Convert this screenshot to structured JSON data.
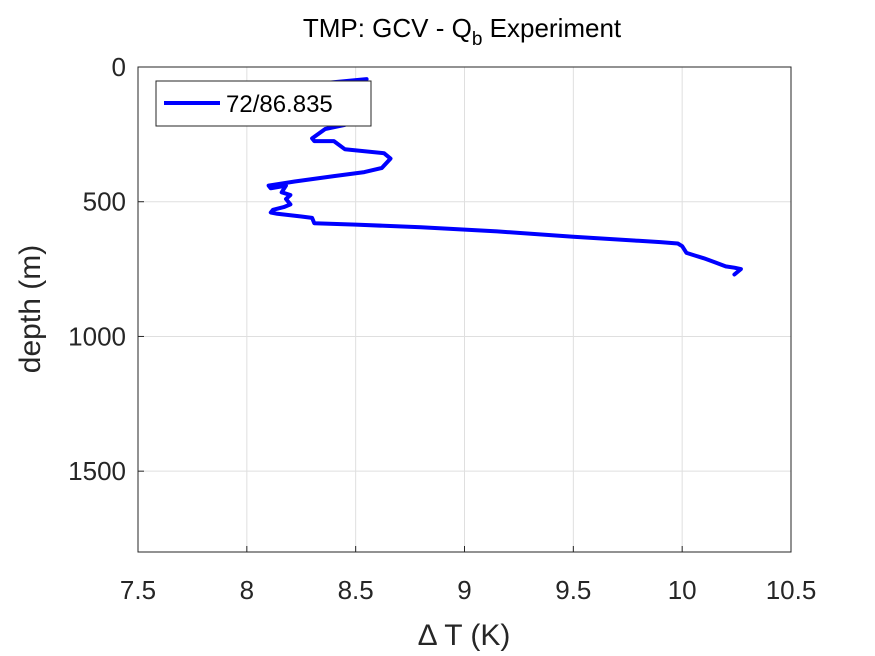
{
  "chart_data": {
    "type": "line",
    "title": {
      "prefix": "TMP: GCV - Q",
      "subscript": "b",
      "suffix": " Experiment"
    },
    "xlabel": "Δ T (K)",
    "ylabel": "depth (m)",
    "xlim": [
      7.5,
      10.5
    ],
    "ylim": [
      0,
      1800
    ],
    "y_reversed": true,
    "x_ticks": [
      7.5,
      8,
      8.5,
      9,
      9.5,
      10,
      10.5
    ],
    "x_tick_labels": [
      "7.5",
      "8",
      "8.5",
      "9",
      "9.5",
      "10",
      "10.5"
    ],
    "y_ticks": [
      0,
      500,
      1000,
      1500
    ],
    "y_tick_labels": [
      "0",
      "500",
      "1000",
      "1500"
    ],
    "grid": true,
    "legend_position": "top-left",
    "series": [
      {
        "name": "72/86.835",
        "color": "#0000ff",
        "x": [
          8.55,
          8.35,
          8.32,
          8.33,
          8.36,
          8.4,
          8.4,
          8.45,
          8.36,
          8.3,
          8.31,
          8.4,
          8.45,
          8.63,
          8.66,
          8.62,
          8.54,
          8.4,
          8.22,
          8.1,
          8.11,
          8.18,
          8.16,
          8.2,
          8.18,
          8.2,
          8.17,
          8.12,
          8.11,
          8.14,
          8.2,
          8.25,
          8.3,
          8.31,
          8.5,
          8.8,
          9.15,
          9.5,
          9.8,
          9.9,
          9.98,
          10.0,
          10.02,
          10.06,
          10.1,
          10.15,
          10.2,
          10.24,
          10.27,
          10.24
        ],
        "y": [
          45,
          60,
          80,
          100,
          130,
          160,
          195,
          215,
          230,
          265,
          275,
          275,
          305,
          320,
          340,
          375,
          390,
          405,
          425,
          440,
          450,
          440,
          465,
          475,
          490,
          510,
          520,
          530,
          540,
          545,
          550,
          555,
          560,
          580,
          585,
          595,
          610,
          630,
          645,
          650,
          655,
          665,
          690,
          700,
          710,
          725,
          740,
          745,
          750,
          770
        ]
      }
    ]
  }
}
